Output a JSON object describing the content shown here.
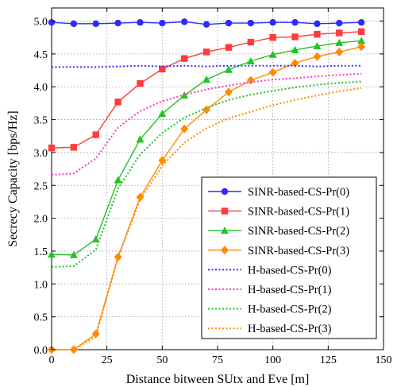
{
  "chart_data": {
    "type": "line",
    "xlabel": "Distance bitween SUtx and Eve [m]",
    "ylabel": "Secrecy Capacity [bps/Hz]",
    "xlim": [
      0,
      150
    ],
    "ylim": [
      0,
      5.2
    ],
    "xticks": [
      0,
      25,
      50,
      75,
      100,
      125,
      150
    ],
    "yticks": [
      0.0,
      0.5,
      1.0,
      1.5,
      2.0,
      2.5,
      3.0,
      3.5,
      4.0,
      4.5,
      5.0
    ],
    "xtick_labels": [
      "0",
      "25",
      "50",
      "75",
      "100",
      "125",
      "150"
    ],
    "ytick_labels": [
      "0.0",
      "0.5",
      "1.0",
      "1.5",
      "2.0",
      "2.5",
      "3.0",
      "3.5",
      "4.0",
      "4.5",
      "5.0"
    ],
    "grid": true,
    "legend_position": "bottom-right",
    "x": [
      0,
      10,
      20,
      30,
      40,
      50,
      60,
      70,
      80,
      90,
      100,
      110,
      120,
      130,
      140
    ],
    "series": [
      {
        "name": "SINR-based-CS-Pr(0)",
        "color": "#2b2bff",
        "style": "solid",
        "marker": "circle",
        "values": [
          4.98,
          4.96,
          4.96,
          4.97,
          4.98,
          4.97,
          4.99,
          4.95,
          4.97,
          4.97,
          4.98,
          4.98,
          4.96,
          4.97,
          4.98
        ]
      },
      {
        "name": "SINR-based-CS-Pr(1)",
        "color": "#ff3b3b",
        "style": "solid",
        "marker": "square",
        "values": [
          3.07,
          3.08,
          3.27,
          3.77,
          4.05,
          4.27,
          4.43,
          4.53,
          4.6,
          4.68,
          4.75,
          4.76,
          4.8,
          4.82,
          4.84
        ]
      },
      {
        "name": "SINR-based-CS-Pr(2)",
        "color": "#22c322",
        "style": "solid",
        "marker": "triangle",
        "values": [
          1.45,
          1.44,
          1.68,
          2.58,
          3.2,
          3.59,
          3.87,
          4.11,
          4.26,
          4.39,
          4.49,
          4.56,
          4.62,
          4.67,
          4.7
        ]
      },
      {
        "name": "SINR-based-CS-Pr(3)",
        "color": "#ff8c00",
        "style": "solid",
        "marker": "diamond",
        "values": [
          0.0,
          0.0,
          0.24,
          1.41,
          2.32,
          2.88,
          3.36,
          3.65,
          3.92,
          4.1,
          4.22,
          4.36,
          4.46,
          4.53,
          4.61
        ]
      },
      {
        "name": "H-based-CS-Pr(0)",
        "color": "#3333ff",
        "style": "dotted",
        "marker": "none",
        "values": [
          4.3,
          4.3,
          4.3,
          4.31,
          4.32,
          4.31,
          4.32,
          4.31,
          4.32,
          4.32,
          4.32,
          4.32,
          4.31,
          4.32,
          4.32
        ]
      },
      {
        "name": "H-based-CS-Pr(1)",
        "color": "#ff33cc",
        "style": "dotted",
        "marker": "none",
        "values": [
          2.66,
          2.68,
          2.91,
          3.38,
          3.63,
          3.78,
          3.88,
          3.96,
          4.02,
          4.07,
          4.11,
          4.13,
          4.16,
          4.18,
          4.2
        ]
      },
      {
        "name": "H-based-CS-Pr(2)",
        "color": "#22c322",
        "style": "dotted",
        "marker": "none",
        "values": [
          1.26,
          1.27,
          1.52,
          2.45,
          2.97,
          3.3,
          3.53,
          3.68,
          3.8,
          3.88,
          3.94,
          3.99,
          4.03,
          4.06,
          4.08
        ]
      },
      {
        "name": "H-based-CS-Pr(3)",
        "color": "#ff8c00",
        "style": "dotted",
        "marker": "none",
        "values": [
          0.0,
          0.0,
          0.2,
          1.4,
          2.28,
          2.8,
          3.15,
          3.37,
          3.52,
          3.62,
          3.72,
          3.8,
          3.87,
          3.93,
          3.98
        ]
      }
    ]
  }
}
